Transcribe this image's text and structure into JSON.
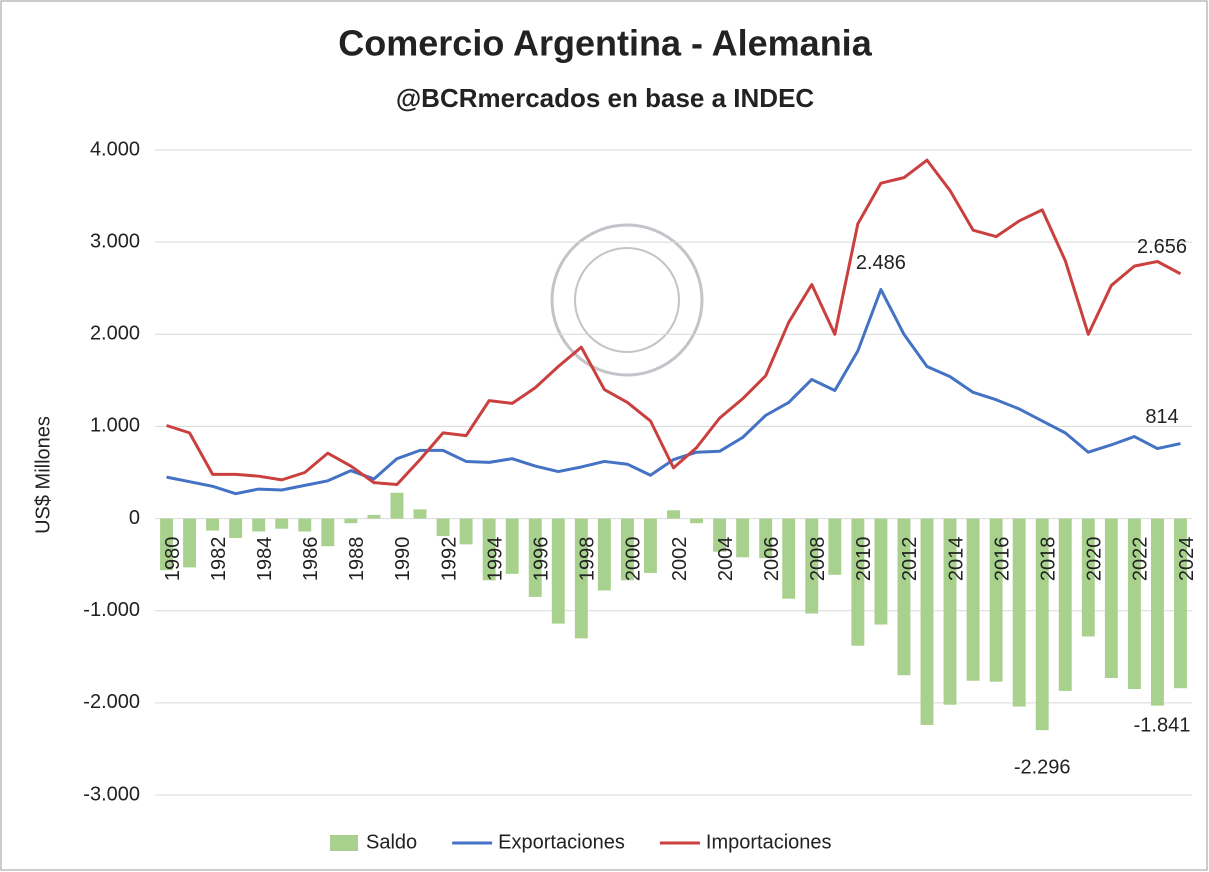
{
  "chart_data": {
    "type": "bar_line",
    "title": "Comercio Argentina - Alemania",
    "subtitle": "@BCRmercados en base a INDEC",
    "y_label": "US$ Millones",
    "categories": [
      "1980",
      null,
      "1982",
      null,
      "1984",
      null,
      "1986",
      null,
      "1988",
      null,
      "1990",
      null,
      "1992",
      null,
      "1994",
      null,
      "1996",
      null,
      "1998",
      null,
      "2000",
      null,
      "2002",
      null,
      "2004",
      null,
      "2006",
      null,
      "2008",
      null,
      "2010",
      null,
      "2012",
      null,
      "2014",
      null,
      "2016",
      null,
      "2018",
      null,
      "2020",
      null,
      "2022",
      null,
      "2024"
    ],
    "series": [
      {
        "name": "Saldo",
        "type": "bar",
        "color": "#a9d18e",
        "values": [
          -560,
          -530,
          -130,
          -210,
          -140,
          -110,
          -140,
          -300,
          -50,
          40,
          280,
          100,
          -190,
          -280,
          -670,
          -600,
          -850,
          -1140,
          -1300,
          -780,
          -670,
          -590,
          90,
          -50,
          -360,
          -420,
          -430,
          -870,
          -1030,
          -610,
          -1380,
          -1150,
          -1700,
          -2240,
          -2020,
          -1760,
          -1770,
          -2040,
          -2296,
          -1870,
          -1280,
          -1730,
          -1850,
          -2030,
          -1841
        ],
        "value_labels": [
          null,
          null,
          null,
          null,
          null,
          null,
          null,
          null,
          null,
          null,
          null,
          null,
          null,
          null,
          null,
          null,
          null,
          null,
          null,
          null,
          null,
          null,
          null,
          null,
          null,
          null,
          null,
          null,
          null,
          null,
          null,
          null,
          null,
          null,
          null,
          null,
          null,
          null,
          "-2.296",
          null,
          null,
          null,
          null,
          null,
          "-1.841"
        ]
      },
      {
        "name": "Exportaciones",
        "type": "line",
        "color": "#4472c4",
        "values": [
          450,
          400,
          350,
          270,
          320,
          310,
          360,
          410,
          520,
          430,
          650,
          740,
          740,
          620,
          610,
          650,
          570,
          510,
          560,
          620,
          590,
          470,
          640,
          720,
          730,
          880,
          1120,
          1260,
          1510,
          1390,
          1820,
          2486,
          2000,
          1650,
          1540,
          1370,
          1290,
          1190,
          1060,
          930,
          720,
          800,
          890,
          760,
          814
        ],
        "value_labels": [
          null,
          null,
          null,
          null,
          null,
          null,
          null,
          null,
          null,
          null,
          null,
          null,
          null,
          null,
          null,
          null,
          null,
          null,
          null,
          null,
          null,
          null,
          null,
          null,
          null,
          null,
          null,
          null,
          null,
          null,
          null,
          "2.486",
          null,
          null,
          null,
          null,
          null,
          null,
          null,
          null,
          null,
          null,
          null,
          null,
          "814"
        ]
      },
      {
        "name": "Importaciones",
        "type": "line",
        "color": "#c9403f",
        "values": [
          1010,
          930,
          480,
          480,
          460,
          420,
          500,
          710,
          570,
          390,
          370,
          640,
          930,
          900,
          1280,
          1250,
          1420,
          1650,
          1860,
          1400,
          1260,
          1060,
          550,
          770,
          1090,
          1300,
          1550,
          2130,
          2540,
          2000,
          3200,
          3640,
          3700,
          3890,
          3560,
          3130,
          3060,
          3230,
          3350,
          2800,
          2000,
          2530,
          2740,
          2790,
          2656
        ],
        "value_labels": [
          null,
          null,
          null,
          null,
          null,
          null,
          null,
          null,
          null,
          null,
          null,
          null,
          null,
          null,
          null,
          null,
          null,
          null,
          null,
          null,
          null,
          null,
          null,
          null,
          null,
          null,
          null,
          null,
          null,
          null,
          null,
          null,
          null,
          null,
          null,
          null,
          null,
          null,
          null,
          null,
          null,
          null,
          null,
          null,
          "2.656"
        ]
      }
    ],
    "ylim": [
      -3000,
      4000
    ],
    "yticks": [
      {
        "value": -3000,
        "label": "-3.000"
      },
      {
        "value": -2000,
        "label": "-2.000"
      },
      {
        "value": -1000,
        "label": "-1.000"
      },
      0,
      {
        "value": 1000,
        "label": "1.000"
      },
      {
        "value": 2000,
        "label": "2.000"
      },
      {
        "value": 3000,
        "label": "3.000"
      },
      {
        "value": 4000,
        "label": "4.000"
      }
    ],
    "grid": true,
    "legend": "bottom"
  }
}
